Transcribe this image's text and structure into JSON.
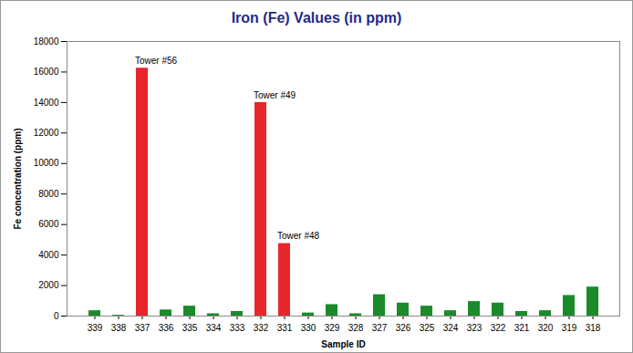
{
  "chart_data": {
    "type": "bar",
    "title": "Iron (Fe) Values (in ppm)",
    "x_label": "Sample ID",
    "y_label": "Fe concentration (ppm)",
    "categories": [
      "339",
      "338",
      "337",
      "336",
      "335",
      "334",
      "333",
      "332",
      "331",
      "330",
      "329",
      "328",
      "327",
      "326",
      "325",
      "324",
      "323",
      "322",
      "321",
      "320",
      "319",
      "318"
    ],
    "values": [
      350,
      50,
      16250,
      400,
      650,
      150,
      300,
      14000,
      4750,
      200,
      750,
      150,
      1400,
      850,
      650,
      350,
      950,
      850,
      300,
      350,
      1350,
      1900
    ],
    "colors": [
      "#1a8a2a",
      "#1a8a2a",
      "#e8262b",
      "#1a8a2a",
      "#1a8a2a",
      "#1a8a2a",
      "#1a8a2a",
      "#e8262b",
      "#e8262b",
      "#1a8a2a",
      "#1a8a2a",
      "#1a8a2a",
      "#1a8a2a",
      "#1a8a2a",
      "#1a8a2a",
      "#1a8a2a",
      "#1a8a2a",
      "#1a8a2a",
      "#1a8a2a",
      "#1a8a2a",
      "#1a8a2a",
      "#1a8a2a"
    ],
    "annotations": [
      {
        "category": "337",
        "text": "Tower #56"
      },
      {
        "category": "332",
        "text": "Tower #49"
      },
      {
        "category": "331",
        "text": "Tower #48"
      }
    ],
    "ylim": [
      0,
      18000
    ],
    "yticks": [
      0,
      2000,
      4000,
      6000,
      8000,
      10000,
      12000,
      14000,
      16000,
      18000
    ],
    "grid": false
  }
}
